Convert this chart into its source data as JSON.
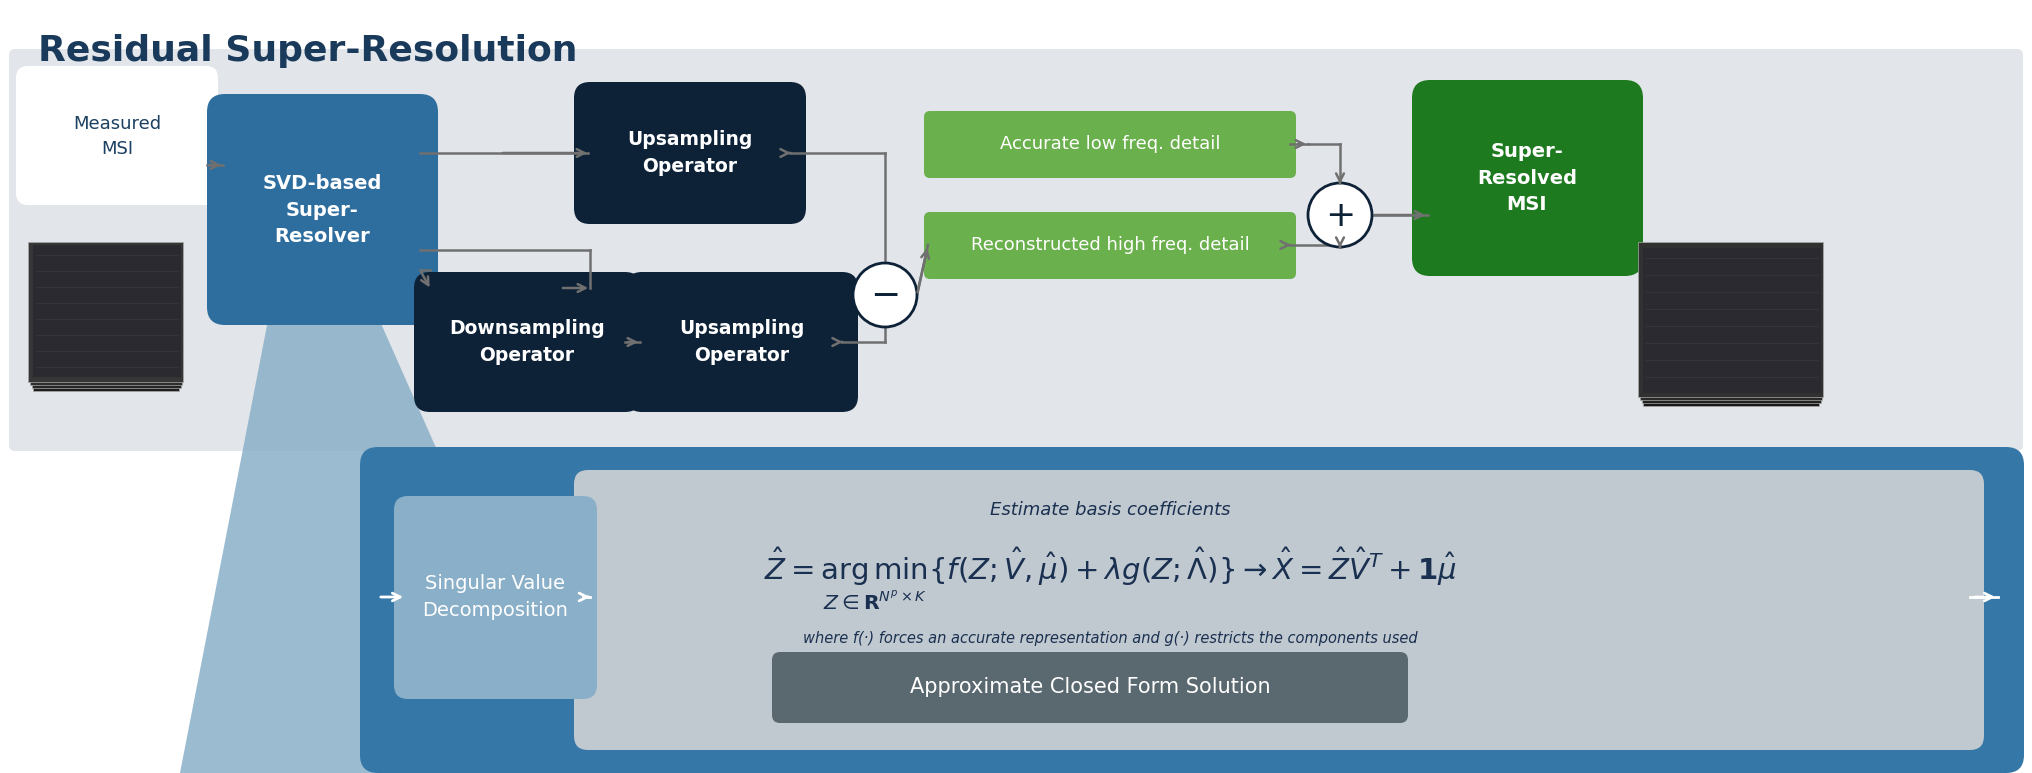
{
  "title": "Residual Super-Resolution",
  "title_color": "#1a3a5c",
  "title_fontsize": 26,
  "bg_color": "#e2e5e9",
  "dark_navy": "#0d2137",
  "medium_navy": "#1c4060",
  "svd_blue": "#2e6e9e",
  "light_steel": "#8aafc8",
  "steel_panel": "#2d6494",
  "green_box": "#6ab04c",
  "dark_green_box": "#1e7a1e",
  "white": "#ffffff",
  "arrow_gray": "#707070",
  "eq_bg": "#c0c8d0",
  "closed_form_bg": "#5a6870",
  "eq_text_color": "#1a3050",
  "sub_text_color": "#1a3050",
  "white_arrow": "#ffffff",
  "zoom_bg": "#3578a8",
  "zoom_light": "#8aafc8",
  "measured_msi": "Measured\nMSI",
  "svd_resolver": "SVD-based\nSuper-\nResolver",
  "upsampling1": "Upsampling\nOperator",
  "downsampling": "Downsampling\nOperator",
  "upsampling2": "Upsampling\nOperator",
  "super_resolved": "Super-\nResolved\nMSI",
  "low_freq": "Accurate low freq. detail",
  "high_freq": "Reconstructed high freq. detail",
  "svd_label": "Singular Value\nDecomposition",
  "eq_label": "Estimate basis coefficients",
  "eq_sub": "where f(·) forces an accurate representation and g(·) restricts the components used",
  "closed_form": "Approximate Closed Form Solution"
}
